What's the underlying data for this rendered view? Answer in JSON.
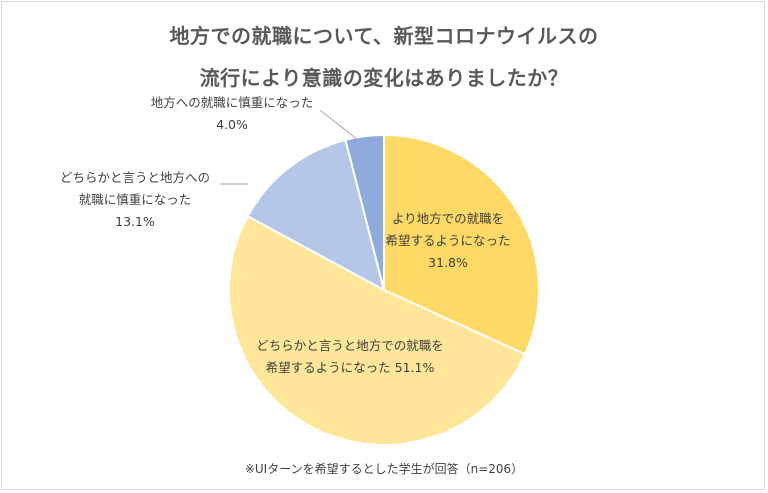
{
  "chart_data": {
    "type": "pie",
    "title_lines": [
      "地方での就職について、新型コロナウイルスの",
      "流行により意識の変化はありましたか？"
    ],
    "slices": [
      {
        "label_lines": [
          "より地方での就職を",
          "希望するようになった"
        ],
        "value_text": "31.8%",
        "value": 31.8,
        "color": "#ffd966"
      },
      {
        "label_lines": [
          "どちらかと言うと地方での就職を",
          "希望するようになった 51.1%"
        ],
        "value_text": "",
        "value": 51.1,
        "color": "#ffe699"
      },
      {
        "label_lines": [
          "どちらかと言うと地方への",
          "就職に慎重になった"
        ],
        "value_text": "13.1%",
        "value": 13.1,
        "color": "#b4c7e7"
      },
      {
        "label_lines": [
          "地方への就職に慎重になった"
        ],
        "value_text": "4.0%",
        "value": 4.0,
        "color": "#8faadc"
      }
    ],
    "footnote": "※UIターンを希望するとした学生が回答（n=206）"
  }
}
